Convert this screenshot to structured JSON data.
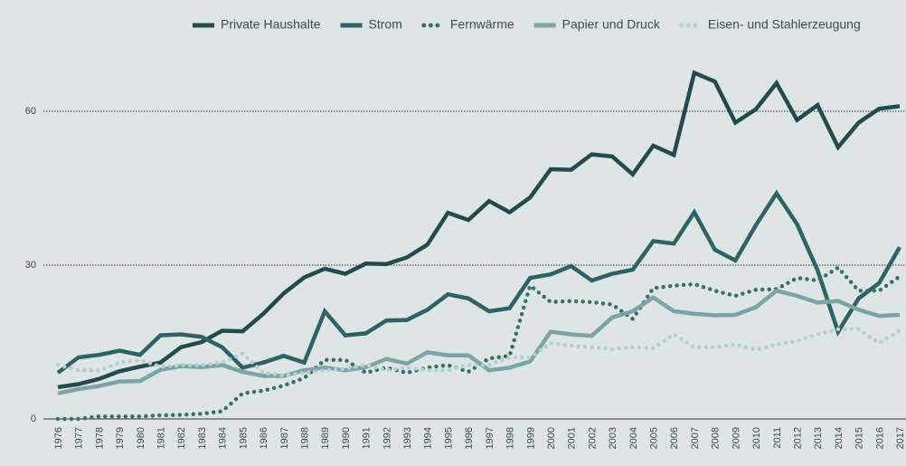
{
  "chart_data": {
    "type": "line",
    "categories": [
      "1976",
      "1977",
      "1978",
      "1979",
      "1980",
      "1981",
      "1982",
      "1983",
      "1984",
      "1985",
      "1986",
      "1987",
      "1988",
      "1989",
      "1990",
      "1991",
      "1992",
      "1993",
      "1994",
      "1995",
      "1996",
      "1997",
      "1998",
      "1999",
      "2000",
      "2001",
      "2002",
      "2003",
      "2004",
      "2005",
      "2006",
      "2007",
      "2008",
      "2009",
      "2010",
      "2011",
      "2012",
      "2013",
      "2014",
      "2015",
      "2016",
      "2017"
    ],
    "ylim": [
      0,
      72
    ],
    "yticks": [
      0,
      30,
      60
    ],
    "grid": true,
    "series": [
      {
        "name": "Private Haushalte",
        "color": "#244a4e",
        "style": "solid",
        "values": [
          6.2,
          6.8,
          7.8,
          9.3,
          10.2,
          11,
          14,
          15,
          17.2,
          17.1,
          20.5,
          24.5,
          27.6,
          29.3,
          28.3,
          30.3,
          30.2,
          31.5,
          34,
          40.2,
          38.8,
          42.5,
          40.3,
          43.2,
          48.7,
          48.6,
          51.6,
          51.2,
          47.7,
          53.3,
          51.5,
          67.5,
          65.8,
          57.8,
          60.4,
          65.5,
          58.3,
          61.2,
          53,
          57.8,
          60.5,
          61
        ]
      },
      {
        "name": "Strom",
        "color": "#2f6264",
        "style": "solid",
        "values": [
          9,
          12,
          12.5,
          13.3,
          12.5,
          16.3,
          16.5,
          16,
          14,
          10,
          11,
          12.3,
          11,
          21,
          16.3,
          16.7,
          19.2,
          19.3,
          21.3,
          24.3,
          23.5,
          21,
          21.6,
          27.5,
          28.2,
          29.8,
          27,
          28.3,
          29.1,
          34.7,
          34.2,
          40.3,
          33,
          30.9,
          37.8,
          44,
          38,
          29,
          17,
          23.5,
          26.5,
          33.5
        ]
      },
      {
        "name": "Fernwärme",
        "color": "#3b6d6d",
        "style": "dotted",
        "values": [
          0,
          0,
          0.5,
          0.5,
          0.5,
          0.7,
          0.8,
          1,
          1.5,
          5,
          5.5,
          6.5,
          8,
          11.5,
          11.5,
          9,
          10,
          9,
          10,
          10.5,
          9.2,
          11.8,
          12.3,
          26,
          22.8,
          23,
          22.8,
          22.3,
          19.5,
          25.5,
          26,
          26.3,
          25,
          24,
          25.2,
          25.3,
          27.5,
          27,
          29.5,
          25,
          25,
          27.8
        ]
      },
      {
        "name": "Papier und Druck",
        "color": "#7ea3a4",
        "style": "solid",
        "values": [
          5,
          5.8,
          6.4,
          7.3,
          7.4,
          9.6,
          10.3,
          10.1,
          10.5,
          9.2,
          8.4,
          8.4,
          9.5,
          10,
          9.5,
          10.1,
          11.7,
          10.8,
          13,
          12.4,
          12.4,
          9.5,
          10,
          11.2,
          17,
          16.5,
          16.2,
          19.8,
          21,
          23.7,
          21,
          20.5,
          20.2,
          20.3,
          21.8,
          25,
          24,
          22.7,
          23,
          21.3,
          20.1,
          20.3
        ]
      },
      {
        "name": "Eisen- und Stahlerzeugung",
        "color": "#b6cfd0",
        "style": "dotted",
        "values": [
          10.5,
          9.5,
          9.4,
          11,
          11.5,
          10.2,
          10.5,
          10.5,
          11,
          12.8,
          9,
          8.5,
          9,
          9.5,
          9.8,
          10.5,
          9.5,
          10,
          9.5,
          9.5,
          10.5,
          10.5,
          12,
          12,
          14.8,
          14.3,
          14,
          13.6,
          14,
          13.8,
          16.5,
          14,
          14,
          14.5,
          13.5,
          14.5,
          15.2,
          16.5,
          17.5,
          17.5,
          14.8,
          17.2
        ]
      }
    ]
  }
}
